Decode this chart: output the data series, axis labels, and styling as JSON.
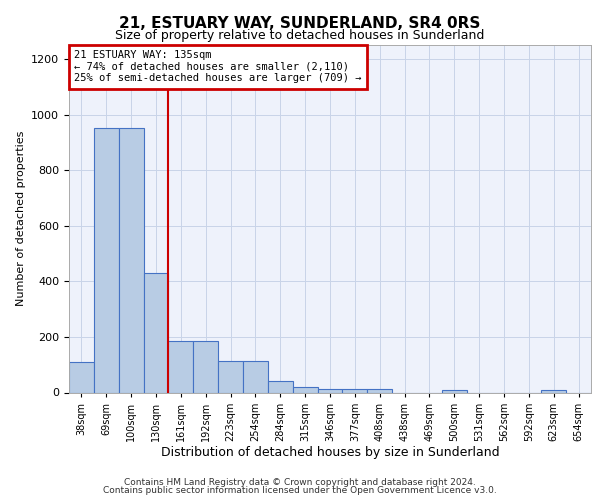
{
  "title": "21, ESTUARY WAY, SUNDERLAND, SR4 0RS",
  "subtitle": "Size of property relative to detached houses in Sunderland",
  "xlabel": "Distribution of detached houses by size in Sunderland",
  "ylabel": "Number of detached properties",
  "categories": [
    "38sqm",
    "69sqm",
    "100sqm",
    "130sqm",
    "161sqm",
    "192sqm",
    "223sqm",
    "254sqm",
    "284sqm",
    "315sqm",
    "346sqm",
    "377sqm",
    "408sqm",
    "438sqm",
    "469sqm",
    "500sqm",
    "531sqm",
    "562sqm",
    "592sqm",
    "623sqm",
    "654sqm"
  ],
  "values": [
    110,
    950,
    950,
    430,
    185,
    185,
    115,
    115,
    42,
    18,
    12,
    12,
    12,
    0,
    0,
    10,
    0,
    0,
    0,
    8,
    0
  ],
  "bar_color": "#b8cce4",
  "bar_edge_color": "#4472c4",
  "vline_color": "#cc0000",
  "vline_pos": 3.5,
  "ylim": [
    0,
    1250
  ],
  "yticks": [
    0,
    200,
    400,
    600,
    800,
    1000,
    1200
  ],
  "annotation_text": "21 ESTUARY WAY: 135sqm\n← 74% of detached houses are smaller (2,110)\n25% of semi-detached houses are larger (709) →",
  "annotation_box_color": "#cc0000",
  "footer_line1": "Contains HM Land Registry data © Crown copyright and database right 2024.",
  "footer_line2": "Contains public sector information licensed under the Open Government Licence v3.0.",
  "background_color": "#eef2fb",
  "grid_color": "#c8d4e8",
  "title_fontsize": 11,
  "subtitle_fontsize": 9,
  "ylabel_fontsize": 8,
  "xlabel_fontsize": 9,
  "tick_fontsize": 7,
  "ann_fontsize": 7.5,
  "footer_fontsize": 6.5
}
